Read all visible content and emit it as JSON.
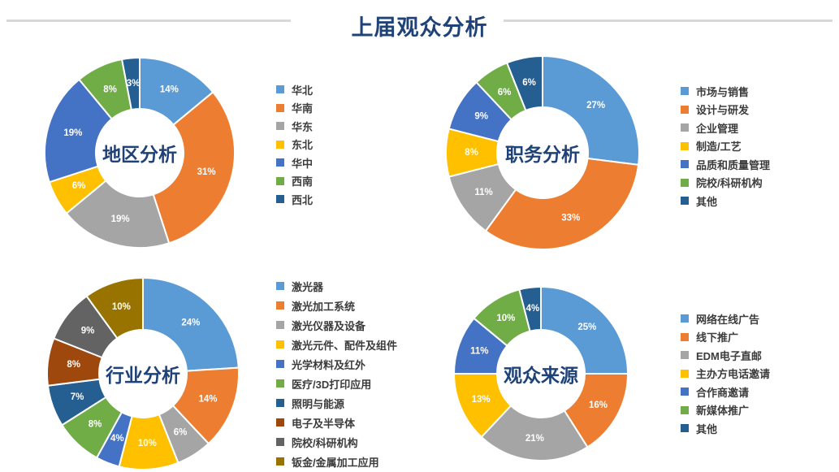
{
  "page": {
    "title": "上届观众分析",
    "title_color": "#1F4378",
    "divider_color": "#D8D8D8",
    "background": "#FFFFFF",
    "percent_label_color": "#FFFFFF"
  },
  "chart_data": [
    {
      "type": "pie",
      "subtype": "donut",
      "title": "地区分析",
      "legend_position": "right",
      "slices": [
        {
          "label": "华北",
          "value": 14,
          "display": "14%",
          "color": "#5B9BD5"
        },
        {
          "label": "华南",
          "value": 31,
          "display": "31%",
          "color": "#ED7D31"
        },
        {
          "label": "华东",
          "value": 19,
          "display": "19%",
          "color": "#A5A5A5"
        },
        {
          "label": "东北",
          "value": 6,
          "display": "6%",
          "color": "#FFC000"
        },
        {
          "label": "华中",
          "value": 19,
          "display": "19%",
          "color": "#4472C4"
        },
        {
          "label": "西南",
          "value": 8,
          "display": "8%",
          "color": "#70AD47"
        },
        {
          "label": "西北",
          "value": 3,
          "display": "3%",
          "color": "#255E91"
        }
      ]
    },
    {
      "type": "pie",
      "subtype": "donut",
      "title": "职务分析",
      "legend_position": "right",
      "slices": [
        {
          "label": "市场与销售",
          "value": 27,
          "display": "27%",
          "color": "#5B9BD5"
        },
        {
          "label": "设计与研发",
          "value": 33,
          "display": "33%",
          "color": "#ED7D31"
        },
        {
          "label": "企业管理",
          "value": 11,
          "display": "11%",
          "color": "#A5A5A5"
        },
        {
          "label": "制造/工艺",
          "value": 8,
          "display": "8%",
          "color": "#FFC000"
        },
        {
          "label": "品质和质量管理",
          "value": 9,
          "display": "9%",
          "color": "#4472C4"
        },
        {
          "label": "院校/科研机构",
          "value": 6,
          "display": "6%",
          "color": "#70AD47"
        },
        {
          "label": "其他",
          "value": 6,
          "display": "6%",
          "color": "#255E91"
        }
      ]
    },
    {
      "type": "pie",
      "subtype": "donut",
      "title": "行业分析",
      "legend_position": "right",
      "slices": [
        {
          "label": "激光器",
          "value": 24,
          "display": "24%",
          "color": "#5B9BD5"
        },
        {
          "label": "激光加工系统",
          "value": 14,
          "display": "14%",
          "color": "#ED7D31"
        },
        {
          "label": "激光仪器及设备",
          "value": 6,
          "display": "6%",
          "color": "#A5A5A5"
        },
        {
          "label": "激光元件、配件及组件",
          "value": 10,
          "display": "10%",
          "color": "#FFC000"
        },
        {
          "label": "光学材料及红外",
          "value": 4,
          "display": "4%",
          "color": "#4472C4"
        },
        {
          "label": "医疗/3D打印应用",
          "value": 8,
          "display": "8%",
          "color": "#70AD47"
        },
        {
          "label": "照明与能源",
          "value": 7,
          "display": "7%",
          "color": "#255E91"
        },
        {
          "label": "电子及半导体",
          "value": 8,
          "display": "8%",
          "color": "#9E480E"
        },
        {
          "label": "院校/科研机构",
          "value": 9,
          "display": "9%",
          "color": "#636363"
        },
        {
          "label": "钣金/金属加工应用",
          "value": 10,
          "display": "10%",
          "color": "#997300"
        }
      ]
    },
    {
      "type": "pie",
      "subtype": "donut",
      "title": "观众来源",
      "legend_position": "right",
      "slices": [
        {
          "label": "网络在线广告",
          "value": 25,
          "display": "25%",
          "color": "#5B9BD5"
        },
        {
          "label": "线下推广",
          "value": 16,
          "display": "16%",
          "color": "#ED7D31"
        },
        {
          "label": "EDM电子直邮",
          "value": 21,
          "display": "21%",
          "color": "#A5A5A5"
        },
        {
          "label": "主办方电话邀请",
          "value": 13,
          "display": "13%",
          "color": "#FFC000"
        },
        {
          "label": "合作商邀请",
          "value": 11,
          "display": "11%",
          "color": "#4472C4"
        },
        {
          "label": "新媒体推广",
          "value": 10,
          "display": "10%",
          "color": "#70AD47"
        },
        {
          "label": "其他",
          "value": 4,
          "display": "4%",
          "color": "#255E91"
        }
      ]
    }
  ]
}
